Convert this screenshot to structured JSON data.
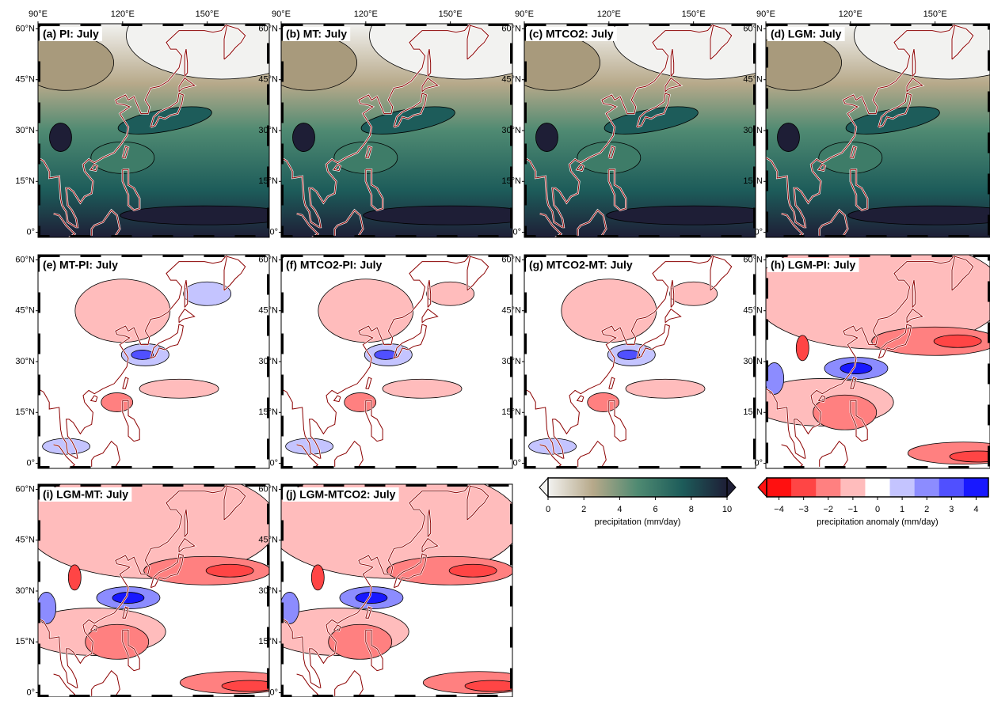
{
  "panels": [
    {
      "title": "(a) PI: July"
    },
    {
      "title": "(b) MT: July"
    },
    {
      "title": "(c) MTCO2: July"
    },
    {
      "title": "(d) LGM: July"
    },
    {
      "title": "(e) MT-PI: July"
    },
    {
      "title": "(f) MTCO2-PI: July"
    },
    {
      "title": "(g) MTCO2-MT: July"
    },
    {
      "title": "(h) LGM-PI: July"
    },
    {
      "title": "(i) LGM-MT: July"
    },
    {
      "title": "(j) LGM-MTCO2: July"
    }
  ],
  "xlim": [
    90,
    172
  ],
  "ylim": [
    -1.5,
    61.5
  ],
  "xticks": [
    {
      "value": 90,
      "label": "90°E"
    },
    {
      "value": 120,
      "label": "120°E"
    },
    {
      "value": 150,
      "label": "150°E"
    }
  ],
  "yticks": [
    {
      "value": 60,
      "label": "60°N"
    },
    {
      "value": 45,
      "label": "45°N"
    },
    {
      "value": 30,
      "label": "30°N"
    },
    {
      "value": 15,
      "label": "15°N"
    },
    {
      "value": 0,
      "label": "0°"
    }
  ],
  "precip_colorbar": {
    "label": "precipitation (mm/day)",
    "lim": [
      0,
      10
    ],
    "ticks": [
      0,
      2,
      4,
      6,
      8,
      10
    ],
    "colors": [
      "#f2f2f0",
      "#b7a98a",
      "#4f8a72",
      "#1d5c5a",
      "#1e1e36"
    ]
  },
  "anomaly_colorbar": {
    "label": "precipitation anomaly (mm/day)",
    "lim": [
      -4.5,
      4.5
    ],
    "ticks": [
      {
        "value": -4,
        "label": "−4"
      },
      {
        "value": -3,
        "label": "−3"
      },
      {
        "value": -2,
        "label": "−2"
      },
      {
        "value": -1,
        "label": "−1"
      },
      0,
      1,
      2,
      3,
      4
    ],
    "colors": [
      "#ff1010",
      "#ff4545",
      "#ff8080",
      "#ffbcbc",
      "#ffffff",
      "#c4c4ff",
      "#8c8cff",
      "#5050ff",
      "#1818ff"
    ]
  }
}
